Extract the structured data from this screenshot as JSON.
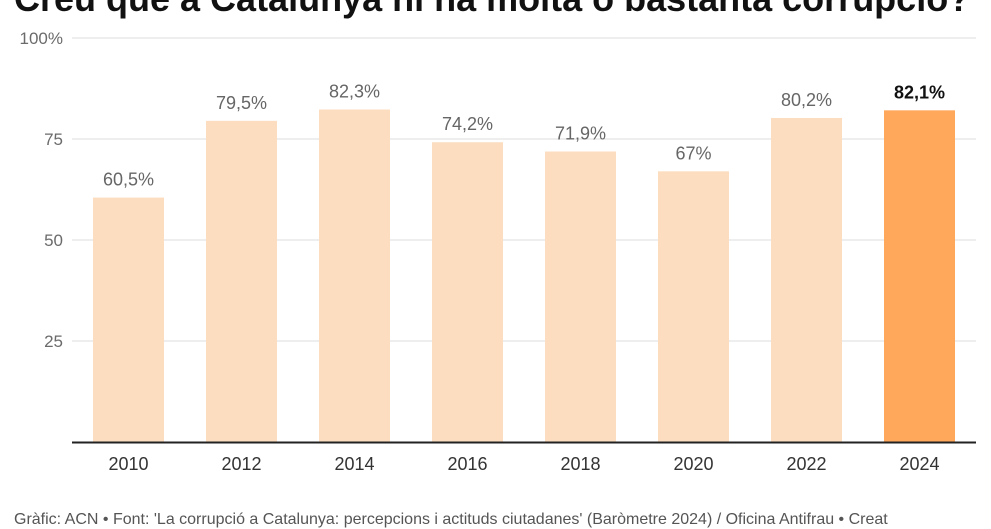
{
  "page": {
    "title": "Creu que a Catalunya hi ha molta o bastanta corrupció?",
    "footer": "Gràfic: ACN • Font: 'La corrupció a Catalunya: percepcions i actituds ciutadanes' (Baròmetre 2024) / Oficina Antifrau • Creat"
  },
  "colors": {
    "bar": "#FCDDC0",
    "bar_highlight": "#FFA85C",
    "grid": "#dddddd",
    "axis": "#222222"
  },
  "chart_data": {
    "type": "bar",
    "title": "Creu que a Catalunya hi ha molta o bastanta corrupció?",
    "xlabel": "",
    "ylabel": "",
    "categories": [
      "2010",
      "2012",
      "2014",
      "2016",
      "2018",
      "2020",
      "2022",
      "2024"
    ],
    "values": [
      60.5,
      79.5,
      82.3,
      74.2,
      71.9,
      67,
      80.2,
      82.1
    ],
    "value_labels": [
      "60,5%",
      "79,5%",
      "82,3%",
      "74,2%",
      "71,9%",
      "67%",
      "80,2%",
      "82,1%"
    ],
    "highlight_index": 7,
    "ylim": [
      0,
      100
    ],
    "yticks": [
      25,
      50,
      75,
      100
    ],
    "ytick_labels": [
      "25",
      "50",
      "75",
      "100%"
    ],
    "grid": true,
    "legend": "none"
  }
}
